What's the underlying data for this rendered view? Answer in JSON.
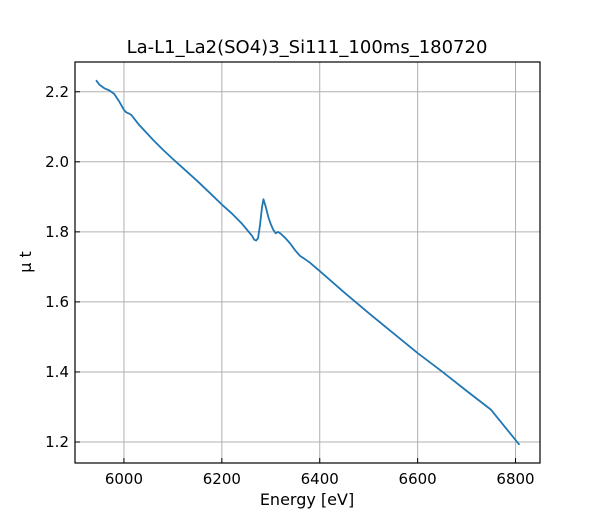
{
  "chart_data": {
    "type": "line",
    "title": "La-L1_La2(SO4)3_Si111_100ms_180720",
    "xlabel": "Energy [eV]",
    "ylabel": "μ t",
    "xlim": [
      5900,
      6850
    ],
    "ylim": [
      1.14,
      2.285
    ],
    "xticks": [
      6000,
      6200,
      6400,
      6600,
      6800
    ],
    "yticks": [
      1.2,
      1.4,
      1.6,
      1.8,
      2.0,
      2.2
    ],
    "xtick_labels": [
      "6000",
      "6200",
      "6400",
      "6600",
      "6800"
    ],
    "ytick_labels": [
      "1.2",
      "1.4",
      "1.6",
      "1.8",
      "2.0",
      "2.2"
    ],
    "grid": true,
    "series": [
      {
        "color": "#1f77b4",
        "x": [
          5943,
          5950,
          5960,
          5970,
          5980,
          5990,
          6000,
          6005,
          6010,
          6015,
          6020,
          6030,
          6040,
          6060,
          6080,
          6100,
          6120,
          6150,
          6180,
          6200,
          6220,
          6240,
          6255,
          6262,
          6266,
          6270,
          6274,
          6278,
          6282,
          6285,
          6290,
          6295,
          6300,
          6305,
          6310,
          6315,
          6320,
          6330,
          6340,
          6350,
          6360,
          6370,
          6380,
          6400,
          6450,
          6500,
          6550,
          6600,
          6650,
          6700,
          6750,
          6808
        ],
        "y": [
          2.233,
          2.22,
          2.21,
          2.204,
          2.194,
          2.173,
          2.148,
          2.141,
          2.138,
          2.134,
          2.125,
          2.107,
          2.092,
          2.062,
          2.034,
          2.008,
          1.983,
          1.945,
          1.905,
          1.878,
          1.853,
          1.825,
          1.8,
          1.788,
          1.778,
          1.775,
          1.782,
          1.82,
          1.87,
          1.893,
          1.87,
          1.842,
          1.822,
          1.806,
          1.796,
          1.8,
          1.795,
          1.782,
          1.766,
          1.747,
          1.731,
          1.722,
          1.712,
          1.688,
          1.627,
          1.568,
          1.511,
          1.454,
          1.401,
          1.346,
          1.292,
          1.192
        ]
      }
    ]
  }
}
